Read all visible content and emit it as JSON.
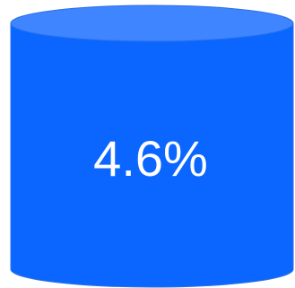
{
  "cylinder": {
    "label": "4.6%"
  }
}
